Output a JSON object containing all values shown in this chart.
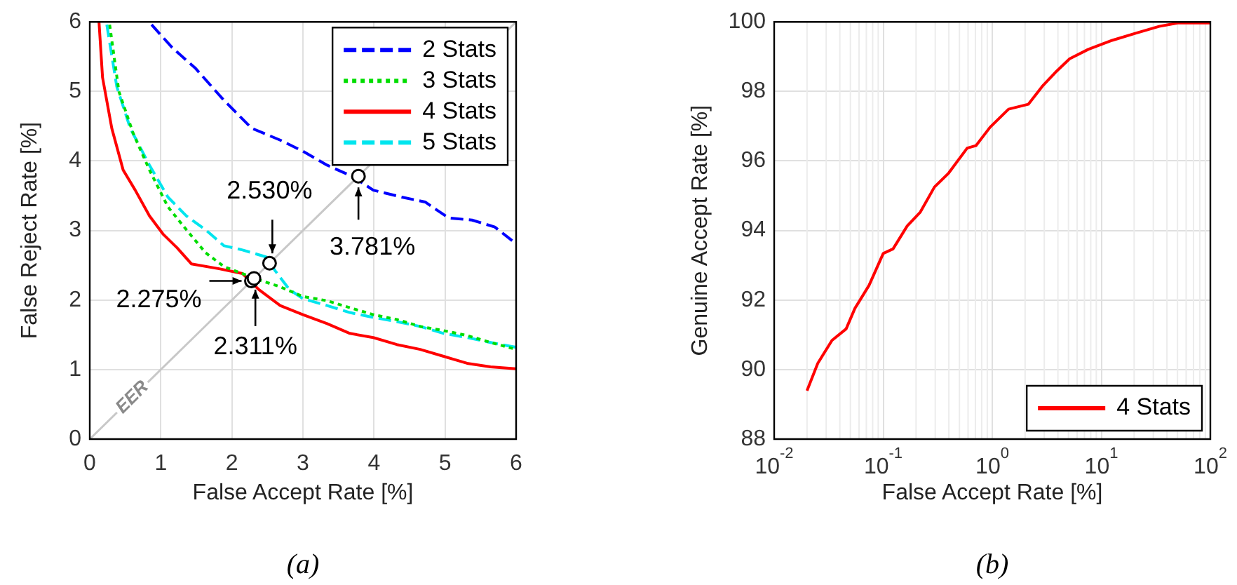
{
  "chart_data": [
    {
      "type": "line",
      "xlabel": "False Accept Rate [%]",
      "ylabel": "False Reject Rate [%]",
      "xlim": [
        0,
        6
      ],
      "ylim": [
        0,
        6
      ],
      "xticks": [
        0,
        1,
        2,
        3,
        4,
        5,
        6
      ],
      "yticks": [
        0,
        1,
        2,
        3,
        4,
        5,
        6
      ],
      "grid": true,
      "legend": "top right",
      "series": [
        {
          "name": "2 Stats",
          "color": "#0000ff",
          "line_style": "dashed",
          "x": [
            0.87,
            1.16,
            1.49,
            1.89,
            2.28,
            2.68,
            3.0,
            3.34,
            3.71,
            3.99,
            4.39,
            4.72,
            5.05,
            5.38,
            5.7,
            6.0
          ],
          "values": [
            5.96,
            5.63,
            5.33,
            4.87,
            4.47,
            4.3,
            4.14,
            3.94,
            3.77,
            3.58,
            3.48,
            3.41,
            3.18,
            3.15,
            3.05,
            2.81
          ]
        },
        {
          "name": "3 Stats",
          "color": "#00dd00",
          "line_style": "dotted",
          "x": [
            0.28,
            0.41,
            0.61,
            0.84,
            1.1,
            1.36,
            1.63,
            1.89,
            2.15,
            2.41,
            2.68,
            3.0,
            3.34,
            3.66,
            3.99,
            4.32,
            4.65,
            4.98,
            5.31,
            5.64,
            6.0
          ],
          "values": [
            5.96,
            5.0,
            4.4,
            3.87,
            3.34,
            3.01,
            2.68,
            2.48,
            2.38,
            2.28,
            2.19,
            2.05,
            1.99,
            1.89,
            1.79,
            1.72,
            1.62,
            1.56,
            1.49,
            1.39,
            1.29
          ]
        },
        {
          "name": "4 Stats",
          "color": "#ff0000",
          "line_style": "solid",
          "x": [
            0.13,
            0.18,
            0.31,
            0.47,
            0.64,
            0.84,
            1.03,
            1.23,
            1.43,
            1.82,
            2.15,
            2.38,
            2.68,
            3.0,
            3.34,
            3.66,
            3.99,
            4.32,
            4.65,
            4.98,
            5.31,
            5.64,
            6.0
          ],
          "values": [
            6.0,
            5.2,
            4.47,
            3.87,
            3.58,
            3.21,
            2.95,
            2.75,
            2.52,
            2.45,
            2.38,
            2.15,
            1.92,
            1.79,
            1.66,
            1.52,
            1.46,
            1.36,
            1.29,
            1.19,
            1.09,
            1.04,
            1.01
          ]
        },
        {
          "name": "5 Stats",
          "color": "#00e5ee",
          "line_style": "dashed",
          "x": [
            0.24,
            0.38,
            0.57,
            0.84,
            1.1,
            1.36,
            1.63,
            1.89,
            2.15,
            2.48,
            2.61,
            2.81,
            3.0,
            3.34,
            3.66,
            3.99,
            4.32,
            4.65,
            4.98,
            5.31,
            5.64,
            6.0
          ],
          "values": [
            5.96,
            5.07,
            4.47,
            3.94,
            3.48,
            3.21,
            3.01,
            2.78,
            2.72,
            2.62,
            2.42,
            2.15,
            2.02,
            1.92,
            1.82,
            1.75,
            1.69,
            1.62,
            1.52,
            1.46,
            1.39,
            1.32
          ]
        },
        {
          "type": "line",
          "color": "#c8c8c8",
          "line_style": "solid",
          "x": [
            0,
            6
          ],
          "values": [
            0,
            6
          ]
        },
        {
          "type": "scatter",
          "color": "#000000",
          "marker": "circle",
          "x": [
            3.781,
            2.53,
            2.275,
            2.311
          ],
          "values": [
            3.781,
            2.53,
            2.275,
            2.311
          ]
        }
      ],
      "annotations": [
        {
          "text": "3.781%",
          "x": 3.781,
          "y": 3.781
        },
        {
          "text": "2.530%",
          "x": 2.53,
          "y": 2.53
        },
        {
          "text": "2.275%",
          "x": 2.275,
          "y": 2.275
        },
        {
          "text": "2.311%",
          "x": 2.311,
          "y": 2.311
        },
        {
          "text": "EER",
          "x": 0.6,
          "y": 0.6
        },
        "(a)"
      ]
    },
    {
      "type": "line",
      "xlabel": "False Accept Rate [%]",
      "ylabel": "Genuine Accept Rate [%]",
      "log": "x",
      "xlim": [
        0.01,
        100
      ],
      "ylim": [
        88,
        100
      ],
      "xticks": [
        {
          "value": 0.01,
          "label": "10$^{-2}$"
        },
        {
          "value": 0.1,
          "label": "10$^{-1}$"
        },
        {
          "value": 1,
          "label": "10$^{0}$"
        },
        {
          "value": 10,
          "label": "10$^{1}$"
        },
        {
          "value": 100,
          "label": "10$^{2}$"
        }
      ],
      "yticks": [
        88,
        90,
        92,
        94,
        96,
        98,
        100
      ],
      "grid": true,
      "legend": "bottom right",
      "series": [
        {
          "name": "4 Stats",
          "color": "#ff0000",
          "line_style": "solid",
          "x": [
            0.02,
            0.0251,
            0.0339,
            0.0457,
            0.055,
            0.0741,
            0.1,
            0.123,
            0.166,
            0.219,
            0.295,
            0.398,
            0.589,
            0.708,
            0.955,
            1.41,
            2.14,
            2.88,
            3.8,
            5.13,
            7.59,
            12.6,
            20.4,
            33.9,
            50.1,
            100
          ],
          "values": [
            89.39,
            90.18,
            90.84,
            91.17,
            91.76,
            92.42,
            93.34,
            93.47,
            94.13,
            94.53,
            95.25,
            95.65,
            96.37,
            96.44,
            96.97,
            97.49,
            97.63,
            98.15,
            98.55,
            98.94,
            99.21,
            99.47,
            99.67,
            99.87,
            99.97,
            99.97
          ]
        }
      ],
      "annotations": [
        "(b)"
      ]
    }
  ]
}
